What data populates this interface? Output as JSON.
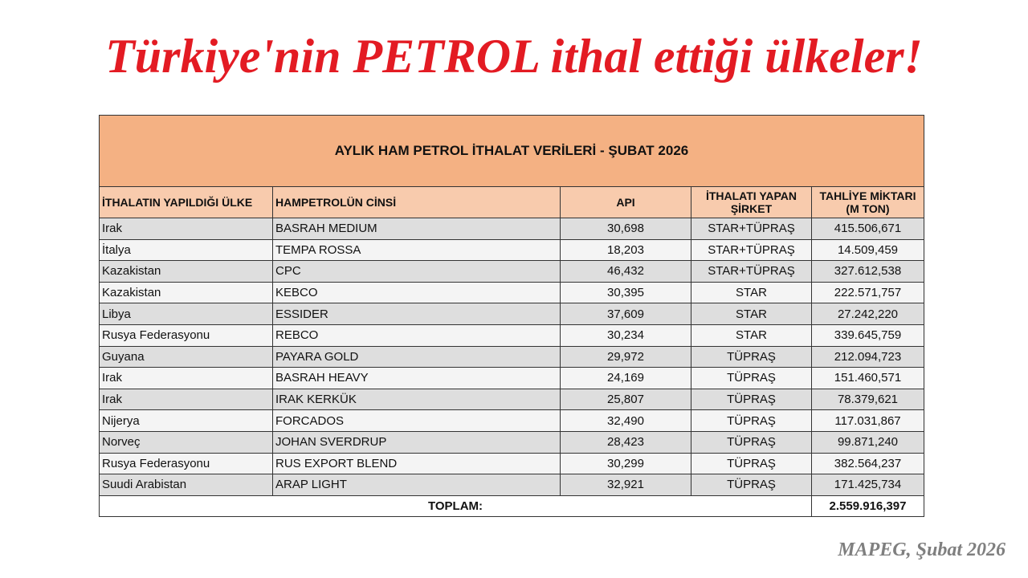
{
  "title": "Türkiye'nin PETROL ithal ettiği ülkeler!",
  "table": {
    "caption": "AYLIK HAM PETROL İTHALAT VERİLERİ - ŞUBAT 2026",
    "columns": [
      "İTHALATIN YAPILDIĞI ÜLKE",
      "HAMPETROLÜN CİNSİ",
      "API",
      "İTHALATI YAPAN ŞİRKET",
      "TAHLİYE MİKTARI (M TON)"
    ],
    "rows": [
      [
        "Irak",
        "BASRAH MEDIUM",
        "30,698",
        "STAR+TÜPRAŞ",
        "415.506,671"
      ],
      [
        "İtalya",
        "TEMPA ROSSA",
        "18,203",
        "STAR+TÜPRAŞ",
        "14.509,459"
      ],
      [
        "Kazakistan",
        "CPC",
        "46,432",
        "STAR+TÜPRAŞ",
        "327.612,538"
      ],
      [
        "Kazakistan",
        "KEBCO",
        "30,395",
        "STAR",
        "222.571,757"
      ],
      [
        "Libya",
        "ESSIDER",
        "37,609",
        "STAR",
        "27.242,220"
      ],
      [
        "Rusya Federasyonu",
        "REBCO",
        "30,234",
        "STAR",
        "339.645,759"
      ],
      [
        "Guyana",
        "PAYARA GOLD",
        "29,972",
        "TÜPRAŞ",
        "212.094,723"
      ],
      [
        "Irak",
        "BASRAH HEAVY",
        "24,169",
        "TÜPRAŞ",
        "151.460,571"
      ],
      [
        "Irak",
        "IRAK KERKÜK",
        "25,807",
        "TÜPRAŞ",
        "78.379,621"
      ],
      [
        "Nijerya",
        "FORCADOS",
        "32,490",
        "TÜPRAŞ",
        "117.031,867"
      ],
      [
        "Norveç",
        "JOHAN SVERDRUP",
        "28,423",
        "TÜPRAŞ",
        "99.871,240"
      ],
      [
        "Rusya Federasyonu",
        "RUS EXPORT BLEND",
        "30,299",
        "TÜPRAŞ",
        "382.564,237"
      ],
      [
        "Suudi Arabistan",
        "ARAP LIGHT",
        "32,921",
        "TÜPRAŞ",
        "171.425,734"
      ]
    ],
    "total_label": "TOPLAM:",
    "total_value": "2.559.916,397"
  },
  "source": "MAPEG, Şubat 2026"
}
